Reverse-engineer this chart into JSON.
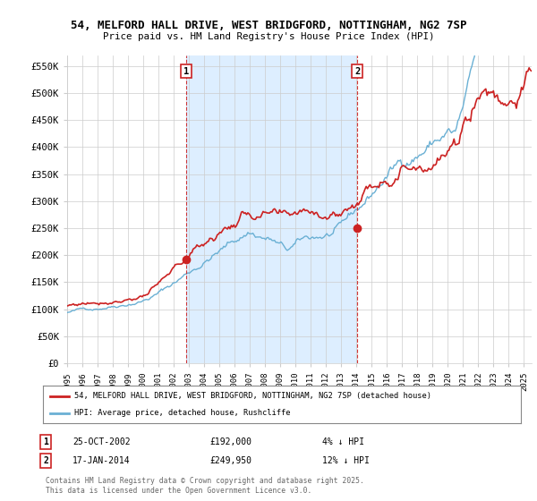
{
  "title_line1": "54, MELFORD HALL DRIVE, WEST BRIDGFORD, NOTTINGHAM, NG2 7SP",
  "title_line2": "Price paid vs. HM Land Registry's House Price Index (HPI)",
  "ylabel_ticks": [
    "£0",
    "£50K",
    "£100K",
    "£150K",
    "£200K",
    "£250K",
    "£300K",
    "£350K",
    "£400K",
    "£450K",
    "£500K",
    "£550K"
  ],
  "ytick_values": [
    0,
    50000,
    100000,
    150000,
    200000,
    250000,
    300000,
    350000,
    400000,
    450000,
    500000,
    550000
  ],
  "ylim": [
    0,
    570000
  ],
  "xlim_start": 1995.0,
  "xlim_end": 2025.5,
  "hpi_color": "#6ab0d4",
  "price_color": "#cc2222",
  "shade_color": "#ddeeff",
  "marker1_x": 2002.82,
  "marker1_y": 192000,
  "marker1_label": "1",
  "marker1_date": "25-OCT-2002",
  "marker1_price": "£192,000",
  "marker1_hpi": "4% ↓ HPI",
  "marker2_x": 2014.05,
  "marker2_y": 249950,
  "marker2_label": "2",
  "marker2_date": "17-JAN-2014",
  "marker2_price": "£249,950",
  "marker2_hpi": "12% ↓ HPI",
  "legend_label_red": "54, MELFORD HALL DRIVE, WEST BRIDGFORD, NOTTINGHAM, NG2 7SP (detached house)",
  "legend_label_blue": "HPI: Average price, detached house, Rushcliffe",
  "footer": "Contains HM Land Registry data © Crown copyright and database right 2025.\nThis data is licensed under the Open Government Licence v3.0.",
  "bg_color": "#ffffff",
  "plot_bg_color": "#ffffff",
  "grid_color": "#cccccc"
}
